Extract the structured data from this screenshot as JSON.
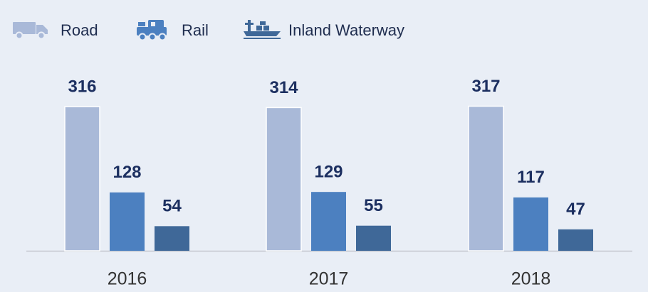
{
  "chart_data": {
    "type": "bar",
    "categories": [
      "2016",
      "2017",
      "2018"
    ],
    "series": [
      {
        "name": "Road",
        "color": "#a9b9d8",
        "values": [
          316,
          314,
          317
        ]
      },
      {
        "name": "Rail",
        "color": "#4c80c0",
        "values": [
          128,
          129,
          117
        ]
      },
      {
        "name": "Inland Waterway",
        "color": "#3f6898",
        "values": [
          54,
          55,
          47
        ]
      }
    ]
  }
}
